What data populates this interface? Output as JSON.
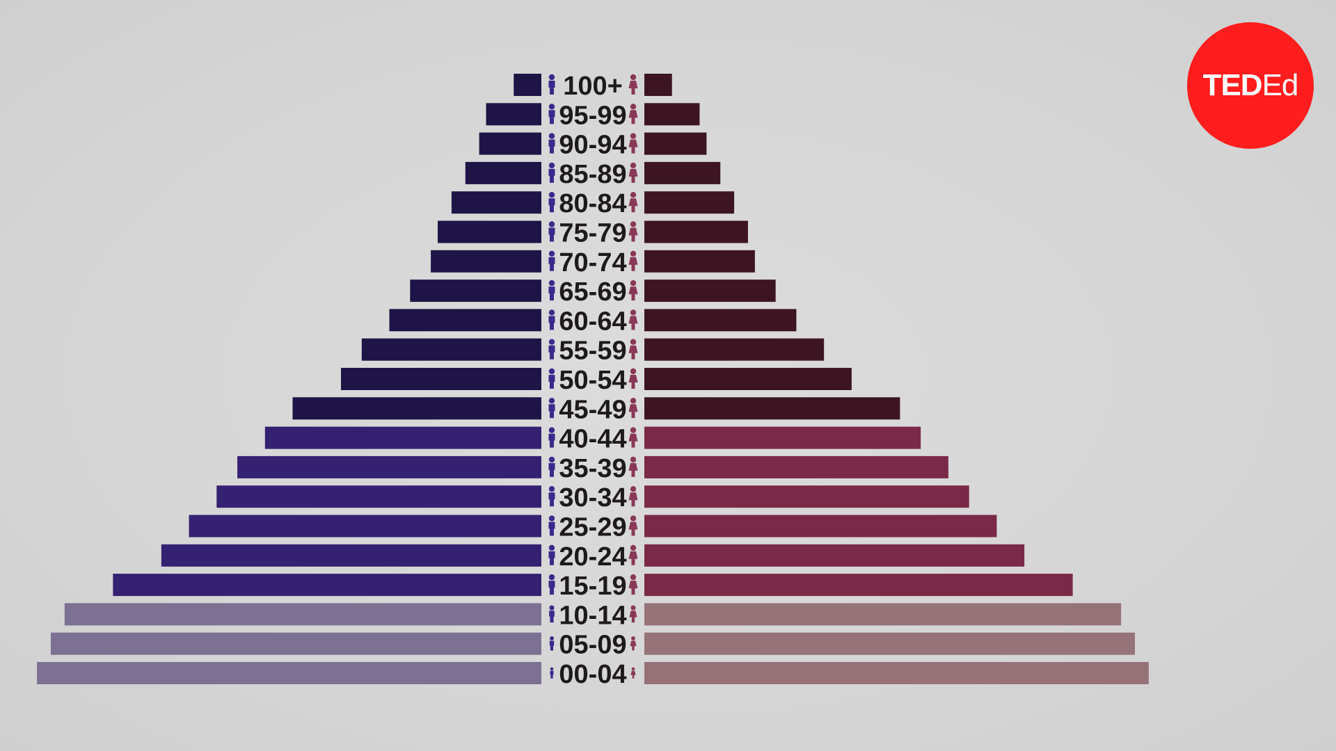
{
  "logo": {
    "ted": "TED",
    "ed": "Ed"
  },
  "colors": {
    "male_young": "#7c7192",
    "male_mid": "#352172",
    "male_old": "#1f1446",
    "female_young": "#967279",
    "female_mid": "#7b2948",
    "female_old": "#3d1522",
    "male_icon": "#3a2a8c",
    "female_icon": "#8a3858",
    "label": "#1e1a1c"
  },
  "chart_data": {
    "type": "bar",
    "orientation": "horizontal-butterfly",
    "categories": [
      "100+",
      "95-99",
      "90-94",
      "85-89",
      "80-84",
      "75-79",
      "70-74",
      "65-69",
      "60-64",
      "55-59",
      "50-54",
      "45-49",
      "40-44",
      "35-39",
      "30-34",
      "25-29",
      "20-24",
      "15-19",
      "10-14",
      "05-09",
      "00-04"
    ],
    "series": [
      {
        "side": "left",
        "values": [
          4,
          8,
          9,
          11,
          13,
          15,
          16,
          19,
          22,
          26,
          29,
          36,
          40,
          44,
          47,
          51,
          55,
          62,
          69,
          71,
          73
        ]
      },
      {
        "side": "right",
        "values": [
          4,
          8,
          9,
          11,
          13,
          15,
          16,
          19,
          22,
          26,
          30,
          37,
          40,
          44,
          47,
          51,
          55,
          62,
          69,
          71,
          73
        ]
      }
    ],
    "color_groups": [
      {
        "ages": "00-14",
        "male": "#7c7192",
        "female": "#967279"
      },
      {
        "ages": "15-44",
        "male": "#352172",
        "female": "#7b2948"
      },
      {
        "ages": "45+",
        "male": "#1f1446",
        "female": "#3d1522"
      }
    ],
    "title": "",
    "xlabel": "",
    "ylabel": "",
    "grid": false,
    "legend": "none"
  }
}
